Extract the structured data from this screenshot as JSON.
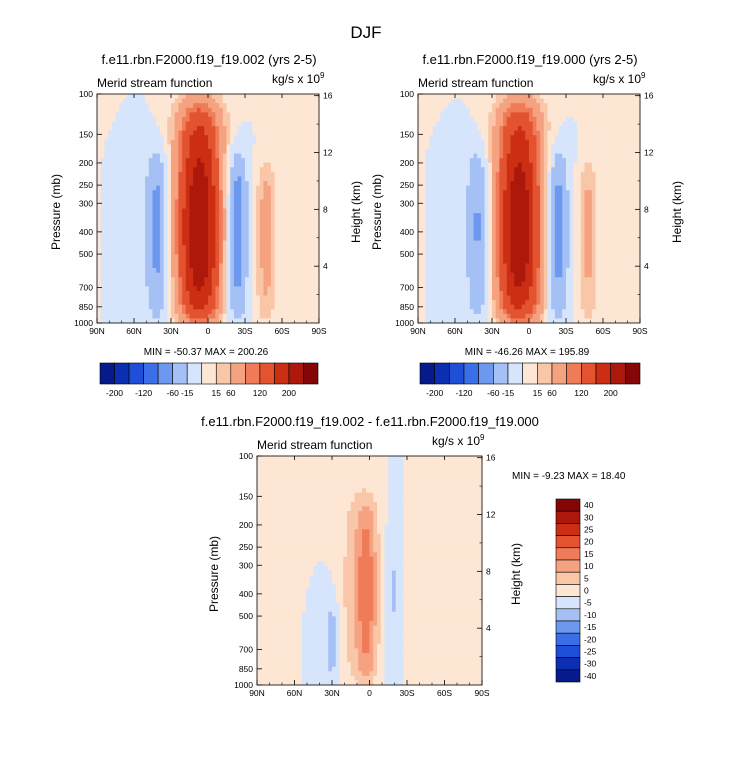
{
  "figure": {
    "title": "DJF"
  },
  "colors": {
    "scale": [
      "#061a8c",
      "#0c2fb2",
      "#1f4ed8",
      "#3b6fe8",
      "#6d98f0",
      "#a4c0f4",
      "#d6e5fb",
      "#fde6d3",
      "#f9c6a8",
      "#f5a281",
      "#ef7b58",
      "#e3532f",
      "#cc2e14",
      "#ac180b",
      "#850606"
    ],
    "neutral_pos": "#fde6d3",
    "neutral_neg": "#d6e5fb"
  },
  "chart_data": [
    {
      "type": "contour",
      "id": "panel-a",
      "title": "f.e11.rbn.F2000.f19_f19.002 (yrs 2-5)",
      "left_label": "Merid stream function",
      "right_label": "kg/s x 10",
      "right_label_exp": "9",
      "ylabel": "Pressure (mb)",
      "ylabel_right": "Height (km)",
      "x_ticks": [
        "90N",
        "60N",
        "30N",
        "0",
        "30S",
        "60S",
        "90S"
      ],
      "x_ticks_values": [
        90,
        60,
        30,
        0,
        -30,
        -60,
        -90
      ],
      "y_ticks": [
        "100",
        "150",
        "200",
        "250",
        "300",
        "400",
        "500",
        "700",
        "850",
        "1000"
      ],
      "y_ticks_values": [
        100,
        150,
        200,
        250,
        300,
        400,
        500,
        700,
        850,
        1000
      ],
      "y_right_ticks": [
        "16",
        "12",
        "8",
        "4"
      ],
      "y_right_values": [
        16,
        12,
        8,
        4
      ],
      "stats": "MIN = -50.37  MAX = 200.26",
      "min": -50.37,
      "max": 200.26,
      "xlim": [
        90,
        -90
      ],
      "ylim": [
        100,
        1000
      ],
      "features": [
        {
          "lat": 7,
          "half_width": 18,
          "amplitude": 200,
          "top_p": 110
        },
        {
          "lat": -22,
          "half_width": 10,
          "amplitude": -50,
          "top_p": 170
        },
        {
          "lat": 40,
          "half_width": 11,
          "amplitude": -40,
          "top_p": 170
        },
        {
          "lat": -47,
          "half_width": 8,
          "amplitude": 40,
          "top_p": 200
        }
      ]
    },
    {
      "type": "contour",
      "id": "panel-b",
      "title": "f.e11.rbn.F2000.f19_f19.000 (yrs 2-5)",
      "left_label": "Merid stream function",
      "right_label": "kg/s x 10",
      "right_label_exp": "9",
      "ylabel": "Pressure (mb)",
      "ylabel_right": "Height (km)",
      "x_ticks": [
        "90N",
        "60N",
        "30N",
        "0",
        "30S",
        "60S",
        "90S"
      ],
      "x_ticks_values": [
        90,
        60,
        30,
        0,
        -30,
        -60,
        -90
      ],
      "y_ticks": [
        "100",
        "150",
        "200",
        "250",
        "300",
        "400",
        "500",
        "700",
        "850",
        "1000"
      ],
      "y_ticks_values": [
        100,
        150,
        200,
        250,
        300,
        400,
        500,
        700,
        850,
        1000
      ],
      "y_right_ticks": [
        "16",
        "12",
        "8",
        "4"
      ],
      "y_right_values": [
        16,
        12,
        8,
        4
      ],
      "stats": "MIN = -46.26  MAX = 195.89",
      "min": -46.26,
      "max": 195.89,
      "xlim": [
        90,
        -90
      ],
      "ylim": [
        100,
        1000
      ],
      "features": [
        {
          "lat": 8,
          "half_width": 18,
          "amplitude": 196,
          "top_p": 110
        },
        {
          "lat": -22,
          "half_width": 10,
          "amplitude": -46,
          "top_p": 170
        },
        {
          "lat": 40,
          "half_width": 11,
          "amplitude": -38,
          "top_p": 170
        },
        {
          "lat": -48,
          "half_width": 8,
          "amplitude": 36,
          "top_p": 200
        }
      ]
    },
    {
      "type": "contour",
      "id": "panel-c",
      "title": "f.e11.rbn.F2000.f19_f19.002 - f.e11.rbn.F2000.f19_f19.000",
      "left_label": "Merid stream function",
      "right_label": "kg/s x 10",
      "right_label_exp": "9",
      "ylabel": "Pressure (mb)",
      "ylabel_right": "Height (km)",
      "x_ticks": [
        "90N",
        "60N",
        "30N",
        "0",
        "30S",
        "60S",
        "90S"
      ],
      "x_ticks_values": [
        90,
        60,
        30,
        0,
        -30,
        -60,
        -90
      ],
      "y_ticks": [
        "100",
        "150",
        "200",
        "250",
        "300",
        "400",
        "500",
        "700",
        "850",
        "1000"
      ],
      "y_ticks_values": [
        100,
        150,
        200,
        250,
        300,
        400,
        500,
        700,
        850,
        1000
      ],
      "y_right_ticks": [
        "16",
        "12",
        "8",
        "4"
      ],
      "y_right_values": [
        16,
        12,
        8,
        4
      ],
      "stats": "MIN = -9.23  MAX = 18.40",
      "min": -9.23,
      "max": 18.4,
      "xlim": [
        90,
        -90
      ],
      "ylim": [
        100,
        1000
      ],
      "features": [
        {
          "lat": 2,
          "half_width": 9,
          "amplitude": 18,
          "top_p": 150
        },
        {
          "lat": 15,
          "half_width": 10,
          "amplitude": 6,
          "top_p": 130
        },
        {
          "lat": 30,
          "half_width": 6,
          "amplitude": -9,
          "top_p": 450
        },
        {
          "lat": -18,
          "half_width": 4,
          "amplitude": -6,
          "top_p": 200
        },
        {
          "lat": -38,
          "half_width": 5,
          "amplitude": 4,
          "top_p": 150
        },
        {
          "lat": -60,
          "half_width": 8,
          "amplitude": 3,
          "top_p": 150
        }
      ]
    }
  ],
  "colorbar_top": {
    "orientation": "horizontal",
    "labels": [
      "-200",
      "-120",
      "-60",
      "-15",
      "15",
      "60",
      "120",
      "200"
    ],
    "levels": [
      -200,
      -160,
      -120,
      -80,
      -60,
      -30,
      -15,
      0,
      15,
      30,
      60,
      80,
      120,
      160,
      200
    ]
  },
  "colorbar_diff": {
    "orientation": "vertical",
    "labels": [
      "40",
      "30",
      "25",
      "20",
      "15",
      "10",
      "5",
      "0",
      "-5",
      "-10",
      "-15",
      "-20",
      "-25",
      "-30",
      "-40"
    ],
    "levels": [
      40,
      30,
      25,
      20,
      15,
      10,
      5,
      0,
      -5,
      -10,
      -15,
      -20,
      -25,
      -30,
      -40
    ]
  }
}
